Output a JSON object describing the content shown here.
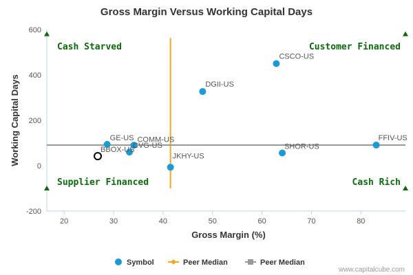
{
  "chart_data": {
    "type": "scatter",
    "title": "Gross Margin Versus Working Capital Days",
    "xlabel": "Gross Margin (%)",
    "ylabel": "Working Capital Days",
    "xlim": [
      16.5,
      89
    ],
    "ylim": [
      -200,
      600
    ],
    "xticks": [
      20,
      30,
      40,
      50,
      60,
      70,
      80
    ],
    "yticks": [
      -200,
      0,
      200,
      400,
      600
    ],
    "grid": false,
    "legend_position": "bottom-center",
    "quadrants": {
      "top_left": "Cash Starved",
      "top_right": "Customer Financed",
      "bottom_left": "Supplier Financed",
      "bottom_right": "Cash Rich"
    },
    "series": [
      {
        "name": "Symbol",
        "color": "#1a9bd7",
        "points": [
          {
            "label": "GE-US",
            "x": 28.7,
            "y": 94
          },
          {
            "label": "COMM-US",
            "x": 34.1,
            "y": 90
          },
          {
            "label": "CVG-US",
            "x": 33.2,
            "y": 60
          },
          {
            "label": "DGII-US",
            "x": 48.0,
            "y": 327
          },
          {
            "label": "CSCO-US",
            "x": 62.9,
            "y": 450
          },
          {
            "label": "JKHY-US",
            "x": 41.5,
            "y": -7
          },
          {
            "label": "SHOR-US",
            "x": 64.1,
            "y": 56
          },
          {
            "label": "FFIV-US",
            "x": 83.1,
            "y": 91
          }
        ]
      },
      {
        "name": "Peer Median",
        "color": "#f5a623",
        "orientation": "vertical",
        "x": 41.5,
        "y_range": [
          -100,
          563
        ]
      },
      {
        "name": "Peer Median",
        "color": "#999999",
        "orientation": "horizontal",
        "y": 91,
        "x_range": [
          16.5,
          89
        ]
      }
    ],
    "highlight": {
      "label": "BBOX-US",
      "x": 26.8,
      "y": 42
    }
  },
  "credit": "www.capitalcube.com"
}
